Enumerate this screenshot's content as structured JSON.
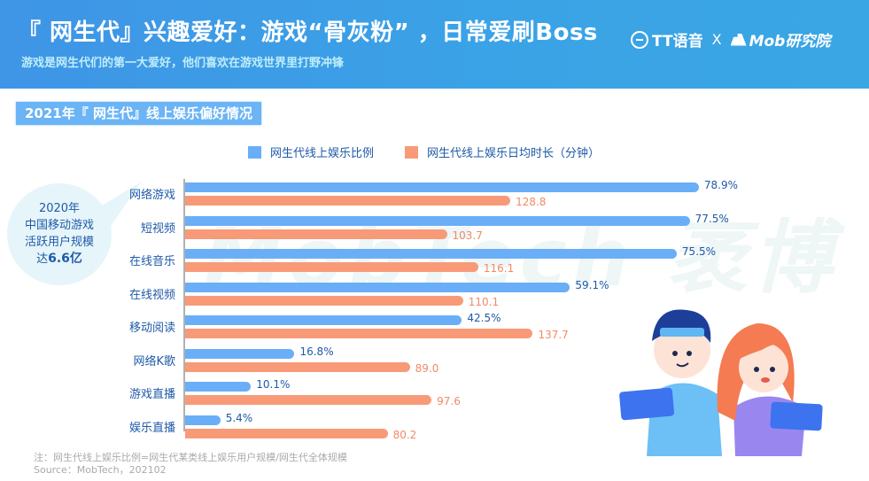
{
  "header": {
    "title": "『 网生代』兴趣爱好：游戏“骨灰粉” ，日常爱刷Boss",
    "subtitle": "游戏是网生代们的第一大爱好，他们喜欢在游戏世界里打野冲锋",
    "brand_left": "TT语音",
    "brand_sep": "X",
    "brand_right": "Mob研究院"
  },
  "section_title": "2021年『 网生代』线上娱乐偏好情况",
  "callout": {
    "line1": "2020年",
    "line2": "中国移动游戏",
    "line3": "活跃用户规模",
    "line4_prefix": "达",
    "line4_value": "6.6亿"
  },
  "watermark": "MobTech 袤博",
  "footnote": {
    "note": "注：网生代线上娱乐比例=网生代某类线上娱乐用户规模/网生代全体规模",
    "source": "Source：MobTech，202102"
  },
  "colors": {
    "ratio": "#6aaef8",
    "duration": "#f89a78",
    "header": "#3f95e6",
    "label": "#1f5aa8"
  },
  "chart_data": {
    "type": "bar",
    "orientation": "horizontal",
    "title": "2021年『 网生代』线上娱乐偏好情况",
    "xlabel": "",
    "ylabel": "",
    "legend_position": "top",
    "grid": false,
    "categories": [
      "网络游戏",
      "短视频",
      "在线音乐",
      "在线视频",
      "移动阅读",
      "网络K歌",
      "游戏直播",
      "娱乐直播"
    ],
    "series": [
      {
        "name": "网生代线上娱乐比例",
        "unit": "%",
        "values": [
          78.9,
          77.5,
          75.5,
          59.1,
          42.5,
          16.8,
          10.1,
          5.4
        ],
        "labels": [
          "78.9%",
          "77.5%",
          "75.5%",
          "59.1%",
          "42.5%",
          "16.8%",
          "10.1%",
          "5.4%"
        ]
      },
      {
        "name": "网生代线上娱乐日均时长（分钟）",
        "unit": "分钟",
        "values": [
          128.8,
          103.7,
          116.1,
          110.1,
          137.7,
          89.0,
          97.6,
          80.2
        ],
        "labels": [
          "128.8",
          "103.7",
          "116.1",
          "110.1",
          "137.7",
          "89.0",
          "97.6",
          "80.2"
        ]
      }
    ],
    "legend": [
      "网生代线上娱乐比例",
      "网生代线上娱乐日均时长（分钟）"
    ]
  }
}
